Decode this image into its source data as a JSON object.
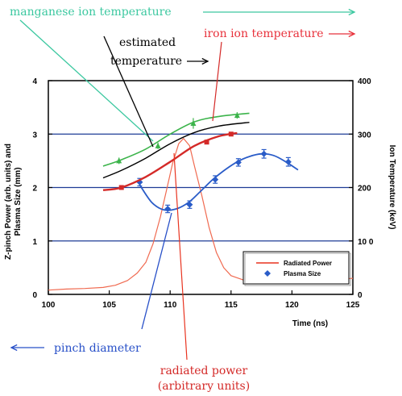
{
  "chart_data": {
    "type": "line",
    "x_axis": {
      "label": "Time (ns)",
      "range": [
        100,
        125
      ],
      "ticks": [
        "100",
        "105",
        "110",
        "115",
        "120",
        "125"
      ]
    },
    "y_left": {
      "label_line1": "Z-pinch Power (arb. units) and",
      "label_line2": "Plasma Size (mm)",
      "range": [
        0,
        4
      ],
      "ticks": [
        "0",
        "1",
        "2",
        "3",
        "4"
      ]
    },
    "y_right": {
      "label": "Ion Temperature (keV)",
      "range": [
        0,
        400
      ],
      "ticks": [
        "0",
        "10 0",
        "200",
        "300",
        "400"
      ]
    },
    "grid": {
      "horizontal": [
        1,
        2,
        3
      ],
      "color": "#1e3c96"
    },
    "legend": {
      "placement": "bottom-right",
      "entries": [
        {
          "name": "Radiated Power",
          "color": "#e8321e",
          "marker": "line"
        },
        {
          "name": "Plasma Size",
          "color": "#2a5cc8",
          "marker": "diamond"
        }
      ]
    },
    "series": [
      {
        "name": "Radiated Power",
        "axis": "left",
        "color": "#f06a50",
        "x": [
          100.0,
          101.5,
          103.0,
          104.5,
          105.5,
          106.5,
          107.3,
          108.0,
          108.6,
          109.2,
          109.7,
          110.2,
          110.7,
          111.1,
          111.6,
          112.0,
          112.6,
          113.2,
          113.8,
          114.4,
          115.0,
          116.0,
          117.5,
          119.0,
          121.0,
          123.0,
          125.0
        ],
        "y": [
          0.08,
          0.1,
          0.11,
          0.13,
          0.17,
          0.26,
          0.4,
          0.6,
          0.95,
          1.45,
          1.95,
          2.45,
          2.82,
          2.92,
          2.78,
          2.4,
          1.85,
          1.25,
          0.78,
          0.5,
          0.35,
          0.27,
          0.24,
          0.22,
          0.25,
          0.27,
          0.3
        ]
      },
      {
        "name": "Plasma Size",
        "axis": "left",
        "color": "#2a5cc8",
        "points_x": [
          107.5,
          109.8,
          111.6,
          113.7,
          115.6,
          117.7,
          119.7
        ],
        "points_y": [
          2.1,
          1.6,
          1.68,
          2.15,
          2.47,
          2.63,
          2.48
        ],
        "errors": [
          0.07,
          0.07,
          0.07,
          0.07,
          0.07,
          0.08,
          0.08
        ],
        "fit_x": [
          107.5,
          108.5,
          109.5,
          110.5,
          111.5,
          112.5,
          113.5,
          114.5,
          115.5,
          116.5,
          117.5,
          118.5,
          119.5,
          120.5
        ],
        "fit_y": [
          2.05,
          1.72,
          1.58,
          1.6,
          1.72,
          1.93,
          2.15,
          2.33,
          2.48,
          2.58,
          2.63,
          2.6,
          2.48,
          2.33
        ]
      },
      {
        "name": "manganese ion temperature",
        "axis": "right",
        "color": "#3cb44b",
        "points_x": [
          105.8,
          109.0,
          111.9,
          115.5
        ],
        "points_y": [
          250,
          278,
          320,
          335
        ],
        "errors": [
          6,
          6,
          10,
          6
        ],
        "fit_x": [
          104.5,
          106,
          108,
          110,
          112,
          114,
          116.5
        ],
        "fit_y": [
          240,
          252,
          272,
          300,
          323,
          333,
          339
        ]
      },
      {
        "name": "estimated temperature",
        "axis": "right",
        "color": "#000000",
        "x": [
          104.5,
          106,
          108,
          110,
          112,
          114,
          116.5
        ],
        "y": [
          218,
          232,
          255,
          282,
          303,
          315,
          322
        ]
      },
      {
        "name": "iron ion temperature",
        "axis": "right",
        "color": "#d42a28",
        "points_x": [
          106,
          113,
          115
        ],
        "points_y": [
          200,
          285,
          300
        ],
        "fit_x": [
          104.5,
          106,
          108,
          110,
          112,
          114,
          115.5
        ],
        "fit_y": [
          195,
          200,
          220,
          248,
          278,
          296,
          302
        ]
      }
    ]
  },
  "annotations": [
    {
      "key": "manganese",
      "text": "manganese ion temperature",
      "color": "#3cc8a0"
    },
    {
      "key": "estimated_1",
      "text": "estimated",
      "color": "#000000"
    },
    {
      "key": "estimated_2",
      "text": "temperature",
      "color": "#000000"
    },
    {
      "key": "iron",
      "text": "iron ion temperature",
      "color": "#e8323c"
    },
    {
      "key": "pinch",
      "text": "pinch diameter",
      "color": "#2850c8"
    },
    {
      "key": "radiated_1",
      "text": "radiated power",
      "color": "#d42a28"
    },
    {
      "key": "radiated_2",
      "text": "(arbitrary units)",
      "color": "#d42a28"
    }
  ]
}
